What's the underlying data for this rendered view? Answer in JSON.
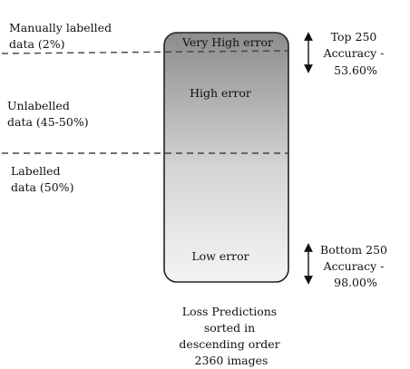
{
  "left_labels": {
    "manually_labelled": [
      "Manually labelled",
      "data (2%)"
    ],
    "unlabelled": [
      "Unlabelled",
      "data (45-50%)"
    ],
    "labelled": [
      "Labelled",
      "data (50%)"
    ]
  },
  "bar": {
    "very_high": "Very High error",
    "high": "High error",
    "low": "Low error"
  },
  "right_labels": {
    "top": [
      "Top 250",
      "Accuracy -",
      "53.60%"
    ],
    "bottom": [
      "Bottom 250",
      "Accuracy -",
      "98.00%"
    ]
  },
  "caption": [
    "Loss Predictions",
    "sorted in",
    "descending order",
    "2360 images"
  ],
  "colors": {
    "bar_top": "#8d8b8b",
    "bar_bottom": "#f2f2f2",
    "line": "#333333"
  }
}
